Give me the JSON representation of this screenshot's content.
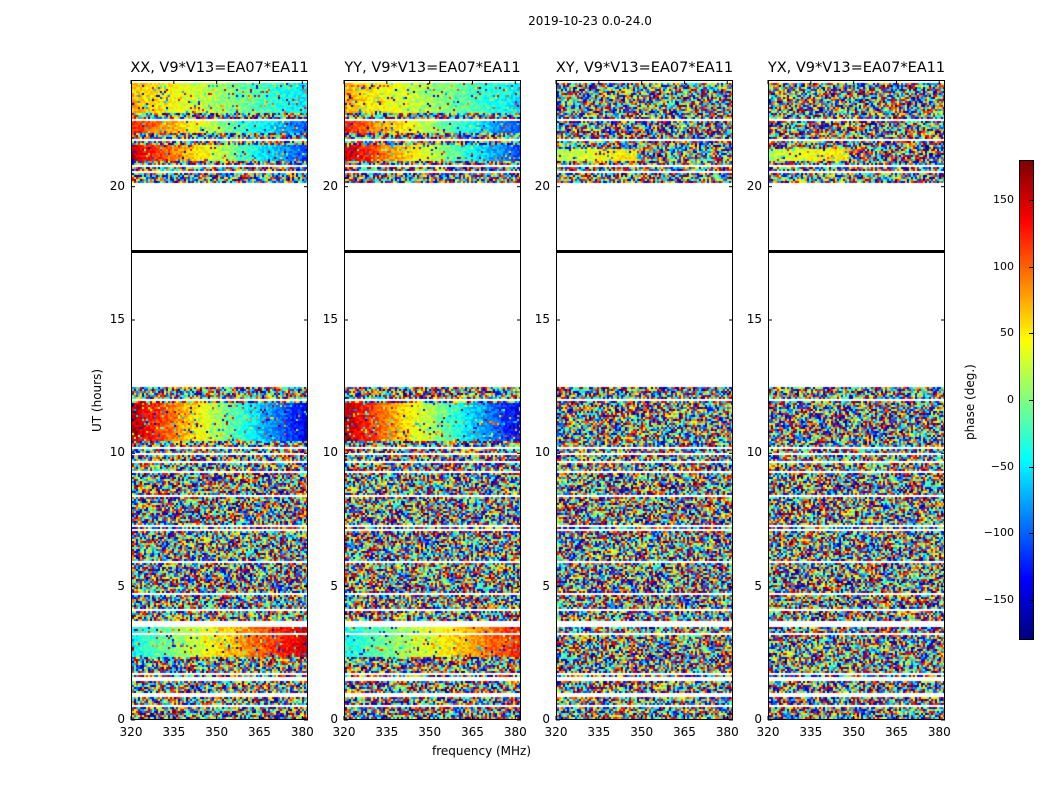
{
  "figure": {
    "suptitle": "2019-10-23 0.0-24.0"
  },
  "chart_data": {
    "type": "heatmap",
    "ylabel": "UT (hours)",
    "xlabel": "frequency (MHz)",
    "xlim": [
      320,
      382
    ],
    "ylim": [
      0,
      24
    ],
    "xticks": [
      320,
      335,
      350,
      365,
      380
    ],
    "yticks": [
      0,
      5,
      10,
      15,
      20
    ],
    "colormap": "jet",
    "panels": [
      {
        "title": "XX, V9*V13=EA07*EA11",
        "pol": "XX",
        "coherent": true
      },
      {
        "title": "YY, V9*V13=EA07*EA11",
        "pol": "YY",
        "coherent": true
      },
      {
        "title": "XY, V9*V13=EA07*EA11",
        "pol": "XY",
        "coherent": false
      },
      {
        "title": "YX, V9*V13=EA07*EA11",
        "pol": "YX",
        "coherent": false
      }
    ],
    "data_time_ranges_hours": [
      [
        0.0,
        3.6
      ],
      [
        3.6,
        7.2
      ],
      [
        7.2,
        9.5
      ],
      [
        9.5,
        12.5
      ],
      [
        20.2,
        24.0
      ]
    ],
    "empty_gap_hours": [
      12.5,
      20.2
    ],
    "marker_line_hour": 17.6,
    "colorbar": {
      "label": "phase (deg.)",
      "range": [
        -180,
        180
      ],
      "ticks": [
        -150,
        -100,
        -50,
        0,
        50,
        100,
        150
      ],
      "tick_labels": [
        "−150",
        "−100",
        "−50",
        "0",
        "50",
        "100",
        "150"
      ],
      "colors": [
        "#00007f",
        "#0000ff",
        "#007fff",
        "#00ffff",
        "#7fff7f",
        "#ffff00",
        "#ff7f00",
        "#ff0000",
        "#7f0000"
      ]
    }
  }
}
